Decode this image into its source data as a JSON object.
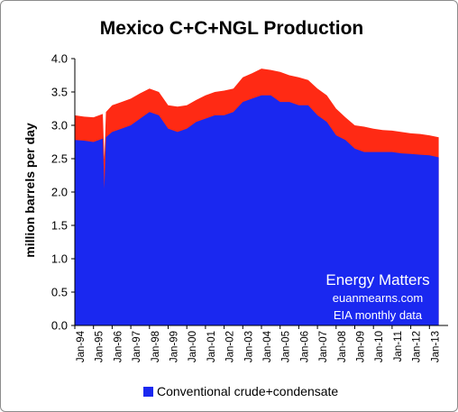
{
  "chart_data": {
    "type": "area",
    "title": "Mexico C+C+NGL Production",
    "ylabel": "million barrels per day",
    "xlabel": "",
    "ylim": [
      0,
      4
    ],
    "yticks": [
      "0.0",
      "0.5",
      "1.0",
      "1.5",
      "2.0",
      "2.5",
      "3.0",
      "3.5",
      "4.0"
    ],
    "x_ticks": [
      "Jan-94",
      "Jan-95",
      "Jan-96",
      "Jan-97",
      "Jan-98",
      "Jan-99",
      "Jan-00",
      "Jan-01",
      "Jan-02",
      "Jan-03",
      "Jan-04",
      "Jan-05",
      "Jan-06",
      "Jan-07",
      "Jan-08",
      "Jan-09",
      "Jan-10",
      "Jan-11",
      "Jan-12",
      "Jan-13"
    ],
    "x_start_year": 1994,
    "grid": false,
    "legend_position": "bottom",
    "annotations": [
      "Energy Matters",
      "euanmearns.com",
      "EIA monthly data"
    ],
    "series": [
      {
        "name": "Conventional crude+condensate",
        "color": "#1a28f0",
        "points": [
          [
            "1994-01",
            2.78
          ],
          [
            "1994-07",
            2.77
          ],
          [
            "1995-01",
            2.75
          ],
          [
            "1995-07",
            2.8
          ],
          [
            "1995-08",
            2.05
          ],
          [
            "1995-09",
            2.82
          ],
          [
            "1996-01",
            2.9
          ],
          [
            "1996-07",
            2.95
          ],
          [
            "1997-01",
            3.0
          ],
          [
            "1997-07",
            3.1
          ],
          [
            "1998-01",
            3.2
          ],
          [
            "1998-07",
            3.15
          ],
          [
            "1999-01",
            2.95
          ],
          [
            "1999-07",
            2.9
          ],
          [
            "2000-01",
            2.95
          ],
          [
            "2000-07",
            3.05
          ],
          [
            "2001-01",
            3.1
          ],
          [
            "2001-07",
            3.15
          ],
          [
            "2002-01",
            3.15
          ],
          [
            "2002-07",
            3.2
          ],
          [
            "2003-01",
            3.35
          ],
          [
            "2003-07",
            3.4
          ],
          [
            "2004-01",
            3.45
          ],
          [
            "2004-07",
            3.45
          ],
          [
            "2005-01",
            3.35
          ],
          [
            "2005-07",
            3.35
          ],
          [
            "2006-01",
            3.3
          ],
          [
            "2006-07",
            3.3
          ],
          [
            "2007-01",
            3.15
          ],
          [
            "2007-07",
            3.05
          ],
          [
            "2008-01",
            2.85
          ],
          [
            "2008-07",
            2.78
          ],
          [
            "2009-01",
            2.65
          ],
          [
            "2009-07",
            2.6
          ],
          [
            "2010-01",
            2.6
          ],
          [
            "2010-07",
            2.6
          ],
          [
            "2011-01",
            2.6
          ],
          [
            "2011-07",
            2.58
          ],
          [
            "2012-01",
            2.57
          ],
          [
            "2012-07",
            2.56
          ],
          [
            "2013-01",
            2.55
          ],
          [
            "2013-07",
            2.52
          ]
        ]
      },
      {
        "name": "NGL",
        "color": "#ff2a14",
        "points": [
          [
            "1994-01",
            3.15
          ],
          [
            "1994-07",
            3.13
          ],
          [
            "1995-01",
            3.12
          ],
          [
            "1995-07",
            3.17
          ],
          [
            "1995-08",
            2.5
          ],
          [
            "1995-09",
            3.2
          ],
          [
            "1996-01",
            3.3
          ],
          [
            "1996-07",
            3.35
          ],
          [
            "1997-01",
            3.4
          ],
          [
            "1997-07",
            3.48
          ],
          [
            "1998-01",
            3.55
          ],
          [
            "1998-07",
            3.5
          ],
          [
            "1999-01",
            3.3
          ],
          [
            "1999-07",
            3.28
          ],
          [
            "2000-01",
            3.3
          ],
          [
            "2000-07",
            3.38
          ],
          [
            "2001-01",
            3.45
          ],
          [
            "2001-07",
            3.5
          ],
          [
            "2002-01",
            3.52
          ],
          [
            "2002-07",
            3.55
          ],
          [
            "2003-01",
            3.72
          ],
          [
            "2003-07",
            3.78
          ],
          [
            "2004-01",
            3.85
          ],
          [
            "2004-07",
            3.83
          ],
          [
            "2005-01",
            3.8
          ],
          [
            "2005-07",
            3.75
          ],
          [
            "2006-01",
            3.72
          ],
          [
            "2006-07",
            3.68
          ],
          [
            "2007-01",
            3.55
          ],
          [
            "2007-07",
            3.45
          ],
          [
            "2008-01",
            3.25
          ],
          [
            "2008-07",
            3.12
          ],
          [
            "2009-01",
            3.0
          ],
          [
            "2009-07",
            2.98
          ],
          [
            "2010-01",
            2.95
          ],
          [
            "2010-07",
            2.93
          ],
          [
            "2011-01",
            2.92
          ],
          [
            "2011-07",
            2.9
          ],
          [
            "2012-01",
            2.88
          ],
          [
            "2012-07",
            2.87
          ],
          [
            "2013-01",
            2.85
          ],
          [
            "2013-07",
            2.82
          ]
        ]
      }
    ]
  }
}
